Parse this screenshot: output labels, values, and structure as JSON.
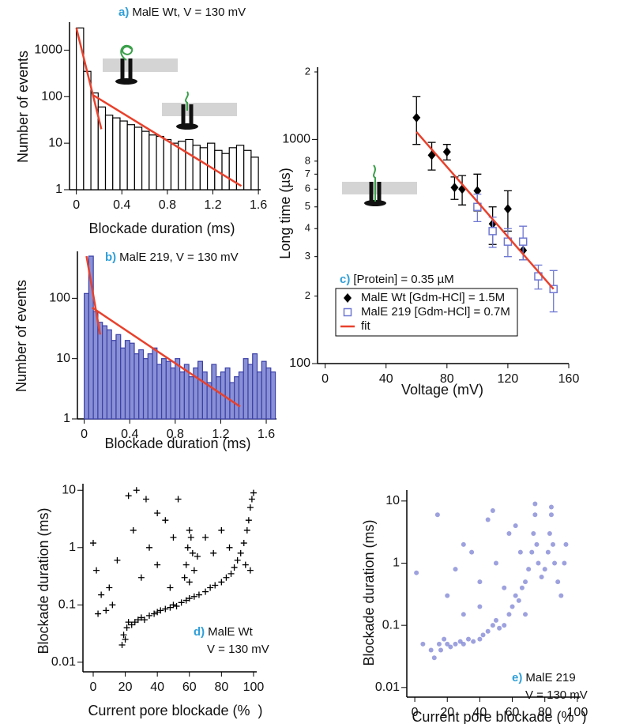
{
  "chart_data": [
    {
      "type": "histogram",
      "panel_label": "a)",
      "title": "MalE Wt, V = 130 mV",
      "x_label": "Blockade duration (ms)",
      "y_label": "Number of events",
      "bins": [
        0,
        0.064,
        0.128,
        0.192,
        0.256,
        0.32,
        0.384,
        0.448,
        0.512,
        0.576,
        0.64,
        0.704,
        0.768,
        0.832,
        0.896,
        0.96,
        1.024,
        1.088,
        1.152,
        1.216,
        1.28,
        1.344,
        1.408,
        1.472,
        1.536,
        1.6
      ],
      "values": [
        3000,
        350,
        120,
        60,
        40,
        35,
        30,
        25,
        22,
        18,
        15,
        14,
        12,
        10,
        11,
        12,
        9,
        8,
        10,
        7,
        6,
        8,
        9,
        7,
        5
      ],
      "color": "#ffffff",
      "edge_color": "#000000",
      "log_y": true,
      "xlim": [
        -0.06,
        1.62
      ],
      "ylim": [
        1,
        4000
      ],
      "xticks": [
        0,
        0.4,
        0.8,
        1.2,
        1.6
      ],
      "yticks": [
        1,
        10,
        100,
        1000
      ],
      "fits": [
        {
          "x": [
            0,
            0.22
          ],
          "values": [
            3000,
            20
          ],
          "color": "#e8412c"
        },
        {
          "x": [
            0.15,
            1.45
          ],
          "values": [
            107,
            1.2
          ],
          "color": "#e8412c"
        }
      ]
    },
    {
      "type": "histogram",
      "panel_label": "b)",
      "title": "MalE 219, V = 130 mV",
      "x_label": "Blockade duration (ms)",
      "y_label": "Number of events",
      "bins": [
        0,
        0.04,
        0.08,
        0.12,
        0.16,
        0.2,
        0.24,
        0.28,
        0.32,
        0.36,
        0.4,
        0.44,
        0.48,
        0.52,
        0.56,
        0.6,
        0.64,
        0.68,
        0.72,
        0.76,
        0.8,
        0.84,
        0.88,
        0.92,
        0.96,
        1,
        1.04,
        1.08,
        1.12,
        1.16,
        1.2,
        1.24,
        1.28,
        1.32,
        1.36,
        1.4,
        1.44,
        1.48,
        1.52,
        1.56,
        1.6,
        1.64,
        1.68
      ],
      "values": [
        120,
        500,
        60,
        40,
        35,
        30,
        20,
        25,
        15,
        20,
        18,
        12,
        14,
        10,
        12,
        15,
        8,
        10,
        9,
        7,
        10,
        6,
        8,
        5,
        7,
        9,
        6,
        4,
        8,
        5,
        6,
        7,
        4,
        5,
        6,
        10,
        8,
        12,
        6,
        9,
        7,
        6
      ],
      "color": "#8a90d6",
      "edge_color": "#3b40a6",
      "log_y": true,
      "xlim": [
        -0.06,
        1.69
      ],
      "ylim": [
        1,
        600
      ],
      "xticks": [
        0,
        0.4,
        0.8,
        1.2,
        1.6
      ],
      "yticks": [
        1,
        10,
        100
      ],
      "fits": [
        {
          "x": [
            0.02,
            0.14
          ],
          "values": [
            500,
            25
          ],
          "color": "#e8412c"
        },
        {
          "x": [
            0.07,
            1.37
          ],
          "values": [
            70,
            1.6
          ],
          "color": "#e8412c"
        }
      ]
    },
    {
      "type": "scatter",
      "panel_label": "c)",
      "annotation": "[Protein] = 0.35 µM",
      "x_label": "Voltage (mV)",
      "y_label": "Long time (µs)",
      "log_y": true,
      "legend": "lower-left",
      "xlim": [
        -5,
        160
      ],
      "ylim": [
        100,
        2100
      ],
      "xticks": [
        0,
        40,
        80,
        120,
        160
      ],
      "yticks": [
        100,
        {
          "value": 200,
          "label": "2"
        },
        {
          "value": 300,
          "label": "3"
        },
        {
          "value": 400,
          "label": "4"
        },
        {
          "value": 500,
          "label": "5"
        },
        {
          "value": 600,
          "label": "6"
        },
        {
          "value": 700,
          "label": "7"
        },
        {
          "value": 800,
          "label": "8"
        },
        1000,
        {
          "value": 2000,
          "label": "2"
        }
      ],
      "series": [
        {
          "name": "MalE Wt [Gdm-HCl] = 1.5M",
          "color": "#000000",
          "marker": "diamond",
          "x": [
            60,
            70,
            80,
            85,
            90,
            100,
            110,
            120,
            130
          ],
          "values": [
            1250,
            850,
            880,
            610,
            600,
            590,
            420,
            490,
            320
          ],
          "errors": [
            300,
            120,
            70,
            70,
            90,
            110,
            80,
            100,
            30
          ]
        },
        {
          "name": "MalE 219 [Gdm-HCl] = 0.7M",
          "color": "#6f78d2",
          "marker": "square",
          "x": [
            100,
            110,
            120,
            130,
            140,
            150
          ],
          "values": [
            500,
            390,
            350,
            350,
            245,
            215
          ],
          "errors": [
            70,
            60,
            50,
            60,
            30,
            45
          ]
        },
        {
          "name": "fit",
          "color": "#e8412c",
          "marker": "line",
          "x": [
            60,
            150
          ],
          "values": [
            1080,
            215
          ]
        }
      ]
    },
    {
      "type": "scatter",
      "panel_label": "d)",
      "annotation": "MalE Wt",
      "annotation_line2": "V = 130 mV",
      "x_label": "Current pore blockade (%  )",
      "y_label": "Blockade duration (ms)",
      "log_y": true,
      "xlim": [
        -6.4,
        102
      ],
      "ylim": [
        0.0068,
        13
      ],
      "xticks": [
        0,
        20,
        40,
        60,
        80,
        100
      ],
      "yticks": [
        0.01,
        0.1,
        1,
        10
      ],
      "color": "#000000",
      "marker": "plus",
      "x": [
        18,
        19,
        20,
        21,
        22,
        24,
        26,
        28,
        30,
        32,
        35,
        38,
        40,
        42,
        45,
        48,
        50,
        52,
        55,
        58,
        60,
        63,
        66,
        70,
        73,
        76,
        80,
        83,
        86,
        88,
        90,
        92,
        94,
        96,
        97,
        98,
        99,
        100,
        98,
        95,
        58,
        59,
        60,
        61,
        62,
        57,
        63,
        60,
        0,
        2,
        5,
        10,
        15,
        25,
        27,
        30,
        33,
        35,
        40,
        45,
        48,
        50,
        53,
        65,
        70,
        75,
        80,
        85,
        8,
        12,
        3,
        22,
        40
      ],
      "values": [
        0.02,
        0.03,
        0.025,
        0.04,
        0.05,
        0.045,
        0.05,
        0.055,
        0.06,
        0.055,
        0.065,
        0.07,
        0.075,
        0.08,
        0.085,
        0.09,
        0.1,
        0.095,
        0.11,
        0.12,
        0.13,
        0.14,
        0.15,
        0.17,
        0.2,
        0.22,
        0.25,
        0.3,
        0.35,
        0.45,
        0.6,
        0.8,
        1.2,
        2,
        3,
        5,
        7,
        9,
        0.4,
        0.5,
        0.5,
        1,
        2,
        1.5,
        0.8,
        0.3,
        0.4,
        0.25,
        1.2,
        0.4,
        0.15,
        0.2,
        0.6,
        2,
        10,
        0.3,
        7,
        1,
        0.5,
        3,
        0.2,
        1.5,
        7,
        0.7,
        1.5,
        0.8,
        2,
        1,
        0.08,
        0.1,
        0.07,
        8,
        4
      ]
    },
    {
      "type": "scatter",
      "panel_label": "e)",
      "annotation": "MalE 219",
      "annotation_line2": "V = 130 mV",
      "x_label": "Current pore blockade (%  )",
      "y_label": "Blockade duration (ms)",
      "log_y": true,
      "xlim": [
        -4.9,
        102
      ],
      "ylim": [
        0.007,
        15
      ],
      "xticks": [
        0,
        20,
        40,
        60,
        80,
        100
      ],
      "yticks": [
        0.01,
        0.1,
        1,
        10
      ],
      "color": "#5b63c8",
      "marker": "circle",
      "x": [
        15,
        16,
        18,
        20,
        22,
        25,
        28,
        30,
        33,
        36,
        40,
        42,
        45,
        48,
        50,
        52,
        55,
        58,
        60,
        62,
        64,
        66,
        68,
        70,
        72,
        73,
        74,
        74,
        75,
        76,
        78,
        80,
        82,
        83,
        84,
        84,
        85,
        86,
        88,
        90,
        92,
        93,
        1,
        5,
        10,
        14,
        20,
        25,
        30,
        35,
        40,
        45,
        48,
        50,
        55,
        58,
        62,
        65,
        68,
        30,
        12,
        40
      ],
      "values": [
        0.05,
        0.04,
        0.06,
        0.05,
        0.045,
        0.05,
        0.055,
        0.05,
        0.06,
        0.055,
        0.06,
        0.07,
        0.08,
        0.1,
        0.12,
        0.09,
        0.1,
        0.15,
        0.2,
        0.3,
        0.25,
        0.4,
        0.5,
        0.8,
        1.5,
        3,
        6,
        9,
        2,
        1,
        0.6,
        0.8,
        1.5,
        3,
        6,
        8,
        2,
        1,
        0.5,
        0.3,
        1,
        2,
        0.7,
        0.05,
        0.04,
        6,
        0.3,
        0.8,
        2,
        1.5,
        0.5,
        5,
        7,
        1,
        0.4,
        3,
        4,
        1.5,
        0.15,
        0.15,
        0.03,
        0.2
      ]
    }
  ]
}
